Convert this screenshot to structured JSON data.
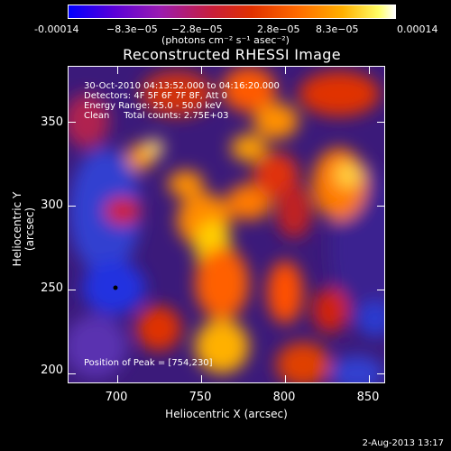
{
  "colorbar": {
    "ticks": [
      "-0.00014",
      "−8.3e−05",
      "−2.8e−05",
      "2.8e−05",
      "8.3e−05",
      "0.00014"
    ],
    "unit": "(photons cm⁻² s⁻¹ asec⁻²)"
  },
  "title": "Reconstructed RHESSI Image",
  "info": {
    "line1": "30-Oct-2010 04:13:52.000 to 04:16:20.000",
    "line2": "Detectors: 4F 5F 6F 7F 8F, Att 0",
    "line3": "Energy Range: 25.0 - 50.0 keV",
    "line4": "Clean     Total counts: 2.75E+03"
  },
  "peak_label": "Position of Peak = [754,230]",
  "axes": {
    "x_label": "Heliocentric X (arcsec)",
    "y_label": "Heliocentric Y (arcsec)",
    "x_ticks": [
      "700",
      "750",
      "800",
      "850"
    ],
    "y_ticks": [
      "350",
      "300",
      "250",
      "200"
    ]
  },
  "footer": {
    "date": "2-Aug-2013 13:17"
  },
  "colors": {
    "background": "#000000",
    "text": "#ffffff"
  }
}
